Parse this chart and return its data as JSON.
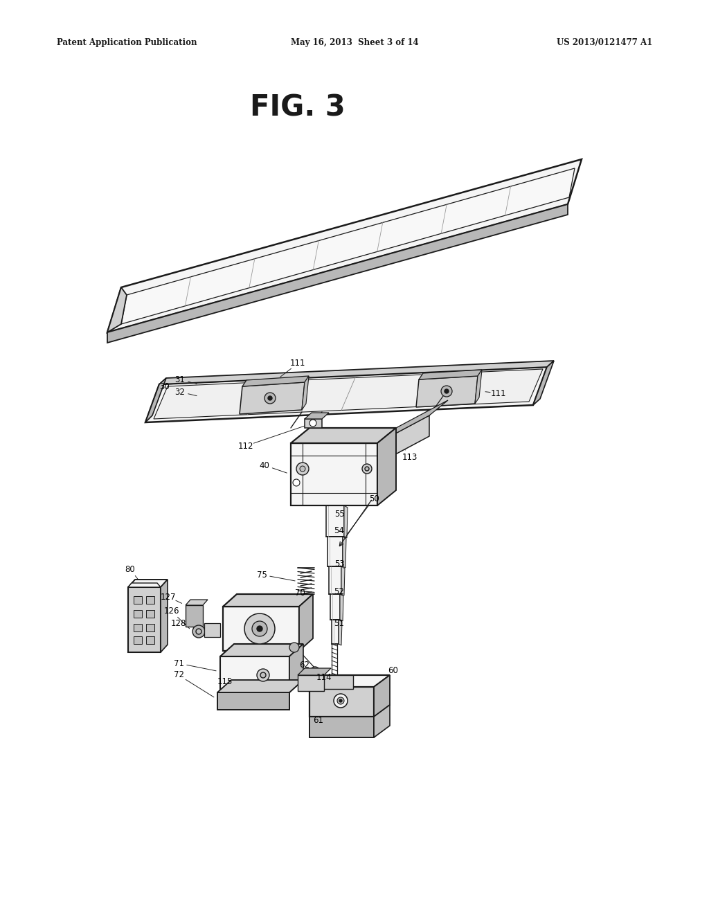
{
  "bg_color": "#ffffff",
  "text_color": "#000000",
  "line_color": "#1a1a1a",
  "header_left": "Patent Application Publication",
  "header_mid": "May 16, 2013  Sheet 3 of 14",
  "header_right": "US 2013/0121477 A1",
  "fig_title": "FIG. 3",
  "gray1": "#e8e8e8",
  "gray2": "#d0d0d0",
  "gray3": "#b8b8b8",
  "gray4": "#f5f5f5",
  "gray5": "#c0c0c0"
}
